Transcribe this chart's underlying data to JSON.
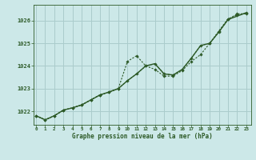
{
  "title": "Graphe pression niveau de la mer (hPa)",
  "bg_color": "#cce8e8",
  "grid_color": "#aacccc",
  "line_color": "#2d5a27",
  "x_ticks": [
    0,
    1,
    2,
    3,
    4,
    5,
    6,
    7,
    8,
    9,
    10,
    11,
    12,
    13,
    14,
    15,
    16,
    17,
    18,
    19,
    20,
    21,
    22,
    23
  ],
  "y_ticks": [
    1022,
    1023,
    1024,
    1025,
    1026
  ],
  "ylim": [
    1021.4,
    1026.7
  ],
  "xlim": [
    -0.3,
    23.5
  ],
  "series1_x": [
    0,
    1,
    2,
    3,
    4,
    5,
    6,
    7,
    8,
    9,
    10,
    11,
    12,
    13,
    14,
    15,
    16,
    17,
    18,
    19,
    20,
    21,
    22,
    23
  ],
  "series1_y": [
    1021.8,
    1021.62,
    1021.8,
    1022.05,
    1022.15,
    1022.28,
    1022.5,
    1022.72,
    1022.85,
    1023.0,
    1024.2,
    1024.45,
    1024.0,
    1023.85,
    1023.55,
    1023.55,
    1023.8,
    1024.2,
    1024.5,
    1025.0,
    1025.5,
    1026.05,
    1026.3,
    1026.3
  ],
  "series2_x": [
    0,
    1,
    2,
    3,
    4,
    5,
    6,
    7,
    8,
    9,
    10,
    11,
    12,
    13,
    14,
    15,
    16,
    17,
    18,
    19,
    20,
    21,
    22,
    23
  ],
  "series2_y": [
    1021.8,
    1021.62,
    1021.8,
    1022.05,
    1022.15,
    1022.28,
    1022.5,
    1022.72,
    1022.85,
    1023.0,
    1023.35,
    1023.65,
    1024.0,
    1024.1,
    1023.65,
    1023.6,
    1023.85,
    1024.35,
    1024.9,
    1025.0,
    1025.5,
    1026.05,
    1026.2,
    1026.35
  ],
  "series3_x": [
    0,
    1,
    2,
    3,
    4,
    5,
    6,
    7,
    8,
    9,
    10,
    11,
    12,
    13,
    14,
    15,
    16,
    17,
    18,
    19,
    20,
    21,
    22,
    23
  ],
  "series3_y": [
    1021.8,
    1021.62,
    1021.8,
    1022.05,
    1022.15,
    1022.28,
    1022.5,
    1022.72,
    1022.85,
    1023.0,
    1023.35,
    1023.65,
    1024.0,
    1024.1,
    1023.65,
    1023.6,
    1023.85,
    1024.35,
    1024.9,
    1025.0,
    1025.55,
    1026.08,
    1026.25,
    1026.35
  ]
}
